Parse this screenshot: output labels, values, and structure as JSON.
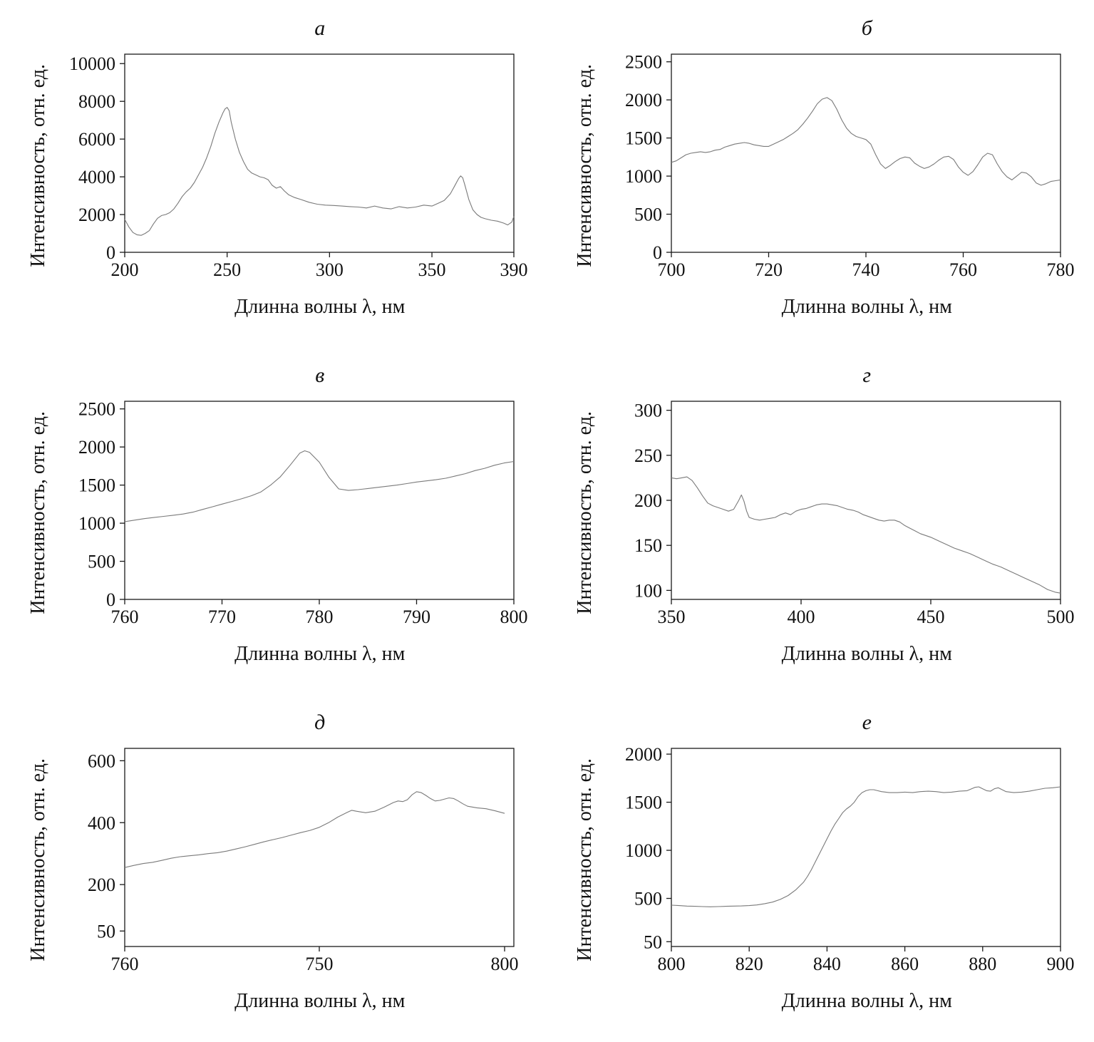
{
  "figure_title": "",
  "colors": {
    "line": "#7a7a7a",
    "axis": "#1a1a1a",
    "background": "#ffffff"
  },
  "axis_labels": {
    "x": "Длинна волны λ, нм",
    "y": "Интенсивность, отн. ед."
  },
  "chart_data": [
    {
      "id": "a",
      "type": "line",
      "title": "а",
      "xlabel": "Длинна волны λ, нм",
      "ylabel": "Интенсивность, отн. ед.",
      "xlim": [
        200,
        390
      ],
      "ylim": [
        0,
        10500
      ],
      "xticks": [
        [
          200,
          "200"
        ],
        [
          250,
          "250"
        ],
        [
          300,
          "300"
        ],
        [
          350,
          "350"
        ],
        [
          390,
          "390"
        ]
      ],
      "yticks": [
        [
          0,
          "0"
        ],
        [
          2000,
          "2000"
        ],
        [
          4000,
          "4000"
        ],
        [
          6000,
          "6000"
        ],
        [
          8000,
          "8000"
        ],
        [
          10000,
          "10000"
        ]
      ],
      "x": [
        200,
        202,
        204,
        206,
        208,
        210,
        212,
        214,
        216,
        218,
        220,
        222,
        224,
        226,
        228,
        230,
        232,
        234,
        236,
        238,
        240,
        242,
        244,
        246,
        248,
        249,
        250,
        251,
        252,
        254,
        256,
        258,
        260,
        262,
        264,
        266,
        268,
        270,
        272,
        274,
        276,
        278,
        280,
        283,
        286,
        290,
        294,
        298,
        302,
        306,
        310,
        314,
        318,
        322,
        326,
        330,
        334,
        338,
        342,
        346,
        350,
        353,
        356,
        359,
        361,
        363,
        364,
        365,
        366,
        368,
        370,
        372,
        374,
        376,
        379,
        382,
        385,
        387,
        389,
        390
      ],
      "y": [
        1750,
        1350,
        1050,
        930,
        900,
        1000,
        1150,
        1500,
        1800,
        1950,
        2000,
        2100,
        2300,
        2600,
        2950,
        3200,
        3400,
        3700,
        4100,
        4500,
        5000,
        5600,
        6300,
        6900,
        7400,
        7600,
        7680,
        7500,
        6900,
        6000,
        5300,
        4800,
        4400,
        4200,
        4100,
        4000,
        3950,
        3850,
        3550,
        3400,
        3480,
        3250,
        3050,
        2900,
        2800,
        2650,
        2550,
        2500,
        2480,
        2450,
        2420,
        2400,
        2350,
        2450,
        2350,
        2300,
        2420,
        2350,
        2400,
        2500,
        2450,
        2600,
        2750,
        3100,
        3500,
        3900,
        4050,
        3950,
        3600,
        2800,
        2250,
        2000,
        1850,
        1780,
        1700,
        1650,
        1550,
        1450,
        1600,
        1900
      ]
    },
    {
      "id": "b",
      "type": "line",
      "title": "б",
      "xlabel": "Длинна волны λ, нм",
      "ylabel": "Интенсивность, отн. ед.",
      "xlim": [
        700,
        780
      ],
      "ylim": [
        0,
        2600
      ],
      "xticks": [
        [
          700,
          "700"
        ],
        [
          720,
          "720"
        ],
        [
          740,
          "740"
        ],
        [
          760,
          "760"
        ],
        [
          780,
          "780"
        ]
      ],
      "yticks": [
        [
          0,
          "0"
        ],
        [
          500,
          "500"
        ],
        [
          1000,
          "1000"
        ],
        [
          1500,
          "1500"
        ],
        [
          2000,
          "2000"
        ],
        [
          2500,
          "2500"
        ]
      ],
      "x": [
        700,
        701,
        702,
        703,
        704,
        705,
        706,
        707,
        708,
        709,
        710,
        711,
        712,
        713,
        714,
        715,
        716,
        717,
        718,
        719,
        720,
        721,
        722,
        723,
        724,
        725,
        726,
        727,
        728,
        729,
        730,
        731,
        732,
        733,
        734,
        735,
        736,
        737,
        738,
        739,
        740,
        741,
        742,
        743,
        744,
        745,
        746,
        747,
        748,
        749,
        750,
        751,
        752,
        753,
        754,
        755,
        756,
        757,
        758,
        759,
        760,
        761,
        762,
        763,
        764,
        765,
        766,
        767,
        768,
        769,
        770,
        771,
        772,
        773,
        774,
        775,
        776,
        777,
        778,
        779,
        780
      ],
      "y": [
        1180,
        1200,
        1240,
        1280,
        1300,
        1310,
        1320,
        1310,
        1320,
        1340,
        1350,
        1380,
        1400,
        1420,
        1430,
        1440,
        1430,
        1410,
        1400,
        1390,
        1390,
        1420,
        1450,
        1480,
        1520,
        1560,
        1610,
        1680,
        1760,
        1850,
        1950,
        2010,
        2030,
        1990,
        1880,
        1740,
        1630,
        1560,
        1520,
        1500,
        1480,
        1420,
        1280,
        1160,
        1100,
        1140,
        1190,
        1230,
        1250,
        1240,
        1170,
        1130,
        1100,
        1120,
        1160,
        1210,
        1250,
        1260,
        1220,
        1120,
        1050,
        1010,
        1060,
        1150,
        1250,
        1300,
        1280,
        1160,
        1060,
        990,
        950,
        1000,
        1050,
        1040,
        990,
        910,
        880,
        900,
        930,
        940,
        950
      ]
    },
    {
      "id": "v",
      "type": "line",
      "title": "в",
      "xlabel": "Длинна волны λ, нм",
      "ylabel": "Интенсивность, отн. ед.",
      "xlim": [
        760,
        800
      ],
      "ylim": [
        0,
        2600
      ],
      "xticks": [
        [
          760,
          "760"
        ],
        [
          770,
          "770"
        ],
        [
          780,
          "780"
        ],
        [
          790,
          "790"
        ],
        [
          800,
          "800"
        ]
      ],
      "yticks": [
        [
          0,
          "0"
        ],
        [
          500,
          "500"
        ],
        [
          1000,
          "1000"
        ],
        [
          1500,
          "1500"
        ],
        [
          2000,
          "2000"
        ],
        [
          2500,
          "2500"
        ]
      ],
      "x": [
        760,
        761,
        762,
        763,
        764,
        765,
        766,
        767,
        768,
        769,
        770,
        771,
        772,
        773,
        774,
        775,
        776,
        777,
        778,
        778.5,
        779,
        780,
        781,
        782,
        783,
        784,
        785,
        786,
        787,
        788,
        789,
        790,
        791,
        792,
        793,
        794,
        795,
        796,
        797,
        798,
        799,
        800
      ],
      "y": [
        1020,
        1040,
        1060,
        1075,
        1090,
        1105,
        1120,
        1145,
        1180,
        1215,
        1250,
        1285,
        1320,
        1360,
        1410,
        1500,
        1610,
        1760,
        1920,
        1950,
        1930,
        1800,
        1600,
        1450,
        1430,
        1440,
        1455,
        1470,
        1485,
        1500,
        1520,
        1540,
        1555,
        1570,
        1590,
        1620,
        1650,
        1690,
        1720,
        1760,
        1790,
        1810
      ]
    },
    {
      "id": "g",
      "type": "line",
      "title": "г",
      "xlabel": "Длинна волны λ, нм",
      "ylabel": "Интенсивность, отн. ед.",
      "xlim": [
        350,
        500
      ],
      "ylim": [
        90,
        310
      ],
      "xticks": [
        [
          350,
          "350"
        ],
        [
          400,
          "400"
        ],
        [
          450,
          "450"
        ],
        [
          500,
          "500"
        ]
      ],
      "yticks": [
        [
          100,
          "100"
        ],
        [
          150,
          "150"
        ],
        [
          200,
          "200"
        ],
        [
          250,
          "250"
        ],
        [
          300,
          "300"
        ]
      ],
      "x": [
        350,
        352,
        354,
        356,
        358,
        360,
        362,
        364,
        366,
        368,
        370,
        372,
        374,
        376,
        377,
        378,
        379,
        380,
        382,
        384,
        386,
        388,
        390,
        392,
        394,
        396,
        398,
        400,
        402,
        404,
        406,
        408,
        410,
        412,
        414,
        416,
        418,
        420,
        422,
        424,
        426,
        428,
        430,
        432,
        434,
        436,
        438,
        440,
        442,
        444,
        446,
        448,
        450,
        453,
        456,
        459,
        462,
        465,
        468,
        471,
        474,
        477,
        480,
        483,
        486,
        489,
        492,
        495,
        498,
        500
      ],
      "y": [
        225,
        224,
        225,
        226,
        222,
        214,
        205,
        197,
        194,
        192,
        190,
        188,
        190,
        200,
        206,
        199,
        188,
        181,
        179,
        178,
        179,
        180,
        181,
        184,
        186,
        184,
        188,
        190,
        191,
        193,
        195,
        196,
        196,
        195,
        194,
        192,
        190,
        189,
        187,
        184,
        182,
        180,
        178,
        177,
        178,
        178,
        176,
        172,
        169,
        166,
        163,
        161,
        159,
        155,
        151,
        147,
        144,
        141,
        137,
        133,
        129,
        126,
        122,
        118,
        114,
        110,
        106,
        101,
        98,
        97
      ]
    },
    {
      "id": "d",
      "type": "line",
      "title": "д",
      "xlabel": "Длинна волны λ, нм",
      "ylabel": "Интенсивность, отн. ед.",
      "xlim": [
        760,
        802
      ],
      "ylim": [
        0,
        640
      ],
      "xticks": [
        [
          760,
          "760"
        ],
        [
          781,
          "750"
        ],
        [
          801,
          "800"
        ]
      ],
      "yticks": [
        [
          50,
          "50"
        ],
        [
          200,
          "200"
        ],
        [
          400,
          "400"
        ],
        [
          600,
          "600"
        ]
      ],
      "x": [
        760,
        761,
        762,
        763,
        764,
        765,
        766,
        767,
        768,
        769,
        770,
        771,
        772,
        773,
        774,
        775,
        776,
        777,
        778,
        779,
        780,
        781,
        782,
        783,
        784,
        784.5,
        785,
        786,
        787,
        788,
        789,
        789.5,
        790,
        790.5,
        791,
        791.5,
        792,
        792.5,
        793,
        793.5,
        794,
        795,
        795.5,
        796,
        796.5,
        797,
        798,
        799,
        800,
        801
      ],
      "y": [
        255,
        262,
        268,
        272,
        278,
        285,
        290,
        293,
        296,
        300,
        303,
        308,
        315,
        322,
        330,
        338,
        345,
        352,
        360,
        368,
        375,
        385,
        400,
        418,
        433,
        440,
        437,
        432,
        437,
        450,
        465,
        470,
        468,
        474,
        490,
        500,
        497,
        488,
        478,
        470,
        472,
        480,
        478,
        470,
        461,
        453,
        448,
        445,
        438,
        430
      ]
    },
    {
      "id": "e",
      "type": "line",
      "title": "е",
      "xlabel": "Длинна волны λ, нм",
      "ylabel": "Интенсивность, отн. ед.",
      "xlim": [
        800,
        900
      ],
      "ylim": [
        0,
        2060
      ],
      "xticks": [
        [
          800,
          "800"
        ],
        [
          820,
          "820"
        ],
        [
          840,
          "840"
        ],
        [
          860,
          "860"
        ],
        [
          880,
          "880"
        ],
        [
          900,
          "900"
        ]
      ],
      "yticks": [
        [
          50,
          "50"
        ],
        [
          500,
          "500"
        ],
        [
          1000,
          "1000"
        ],
        [
          1500,
          "1500"
        ],
        [
          2000,
          "2000"
        ]
      ],
      "x": [
        800,
        802,
        804,
        806,
        808,
        810,
        812,
        814,
        816,
        818,
        820,
        822,
        824,
        826,
        828,
        830,
        832,
        834,
        835,
        836,
        837,
        838,
        839,
        840,
        841,
        842,
        843,
        844,
        845,
        846,
        847,
        848,
        849,
        850,
        851,
        852,
        853,
        854,
        856,
        858,
        860,
        862,
        864,
        866,
        868,
        870,
        872,
        874,
        876,
        878,
        879,
        880,
        881,
        882,
        883,
        884,
        885,
        886,
        888,
        890,
        892,
        894,
        896,
        898,
        900
      ],
      "y": [
        430,
        425,
        420,
        418,
        415,
        413,
        415,
        418,
        420,
        422,
        425,
        432,
        445,
        462,
        490,
        530,
        590,
        670,
        730,
        800,
        880,
        960,
        1040,
        1120,
        1200,
        1270,
        1330,
        1390,
        1430,
        1460,
        1500,
        1560,
        1600,
        1620,
        1630,
        1630,
        1620,
        1610,
        1600,
        1600,
        1605,
        1600,
        1610,
        1615,
        1610,
        1600,
        1605,
        1615,
        1620,
        1655,
        1660,
        1640,
        1620,
        1615,
        1640,
        1650,
        1630,
        1610,
        1600,
        1605,
        1615,
        1630,
        1645,
        1650,
        1660
      ]
    }
  ]
}
